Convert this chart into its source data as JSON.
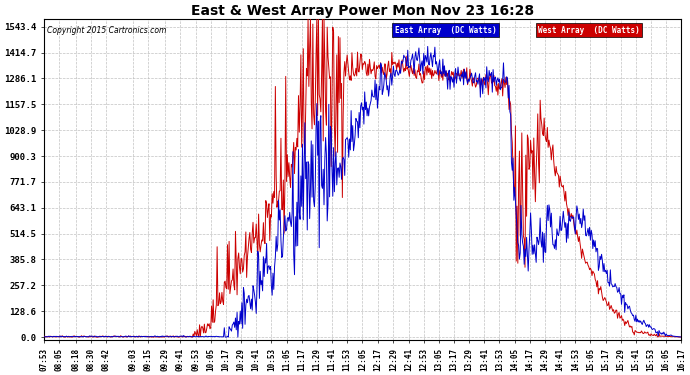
{
  "title": "East & West Array Power Mon Nov 23 16:28",
  "copyright": "Copyright 2015 Cartronics.com",
  "legend_east": "East Array  (DC Watts)",
  "legend_west": "West Array  (DC Watts)",
  "east_color": "#0000cc",
  "west_color": "#cc0000",
  "bg_color": "#ffffff",
  "plot_bg_color": "#ffffff",
  "grid_color": "#bbbbbb",
  "yticks": [
    0.0,
    128.6,
    257.2,
    385.8,
    514.5,
    643.1,
    771.7,
    900.3,
    1028.9,
    1157.5,
    1286.1,
    1414.7,
    1543.4
  ],
  "ymax": 1580,
  "ymin": -15,
  "x_tick_labels": [
    "07:53",
    "08:05",
    "08:18",
    "08:30",
    "08:42",
    "09:03",
    "09:15",
    "09:29",
    "09:41",
    "09:53",
    "10:05",
    "10:17",
    "10:29",
    "10:41",
    "10:53",
    "11:05",
    "11:17",
    "11:29",
    "11:41",
    "11:53",
    "12:05",
    "12:17",
    "12:29",
    "12:41",
    "12:53",
    "13:05",
    "13:17",
    "13:29",
    "13:41",
    "13:53",
    "14:05",
    "14:17",
    "14:29",
    "14:41",
    "14:53",
    "15:05",
    "15:17",
    "15:29",
    "15:41",
    "15:53",
    "16:05",
    "16:17"
  ]
}
